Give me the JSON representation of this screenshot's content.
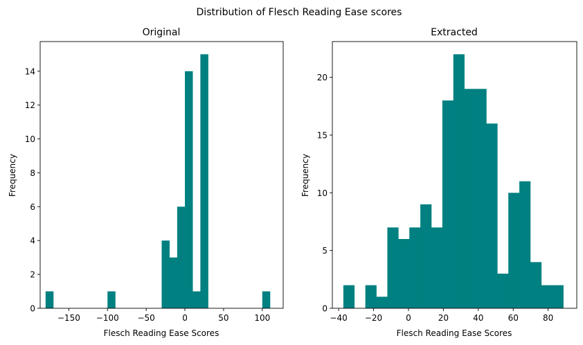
{
  "figure": {
    "suptitle": "Distribution of Flesch Reading Ease scores"
  },
  "colors": {
    "bar": "#008080",
    "axis": "#000000",
    "background": "#ffffff"
  },
  "chart_data": [
    {
      "type": "bar",
      "subtype": "histogram",
      "title": "Original",
      "xlabel": "Flesch Reading Ease Scores",
      "ylabel": "Frequency",
      "xlim": [
        -187,
        127
      ],
      "ylim": [
        0,
        15.75
      ],
      "xticks": [
        -150,
        -100,
        -50,
        0,
        50,
        100
      ],
      "yticks": [
        0,
        2,
        4,
        6,
        8,
        10,
        12,
        14
      ],
      "bin_edges": [
        -180,
        -170,
        -160,
        -150,
        -140,
        -130,
        -120,
        -110,
        -100,
        -90,
        -80,
        -70,
        -60,
        -50,
        -40,
        -30,
        -20,
        -10,
        0,
        10,
        20,
        30,
        40,
        50,
        60,
        70,
        80,
        90,
        100,
        110,
        120
      ],
      "counts": [
        1,
        0,
        0,
        0,
        0,
        0,
        0,
        0,
        1,
        0,
        0,
        0,
        0,
        0,
        0,
        4,
        3,
        6,
        14,
        1,
        15,
        0,
        0,
        0,
        0,
        0,
        0,
        0,
        1,
        0
      ],
      "grid": false,
      "legend": "none"
    },
    {
      "type": "bar",
      "subtype": "histogram",
      "title": "Extracted",
      "xlabel": "Flesch Reading Ease Scores",
      "ylabel": "Frequency",
      "xlim": [
        -43.6,
        96.4
      ],
      "ylim": [
        0,
        23.1
      ],
      "xticks": [
        -40,
        -20,
        0,
        20,
        40,
        60,
        80
      ],
      "yticks": [
        0,
        5,
        10,
        15,
        20
      ],
      "bin_edges": [
        -37.3,
        -31,
        -24.7,
        -18.4,
        -12.1,
        -5.8,
        0.5,
        6.8,
        13.1,
        19.4,
        25.7,
        32,
        38.3,
        44.6,
        50.9,
        57.2,
        63.5,
        69.8,
        76.1,
        82.4,
        88.7
      ],
      "counts": [
        2,
        0,
        2,
        1,
        7,
        6,
        7,
        9,
        7,
        18,
        22,
        19,
        19,
        16,
        3,
        10,
        11,
        4,
        2,
        2
      ],
      "grid": false,
      "legend": "none"
    }
  ]
}
